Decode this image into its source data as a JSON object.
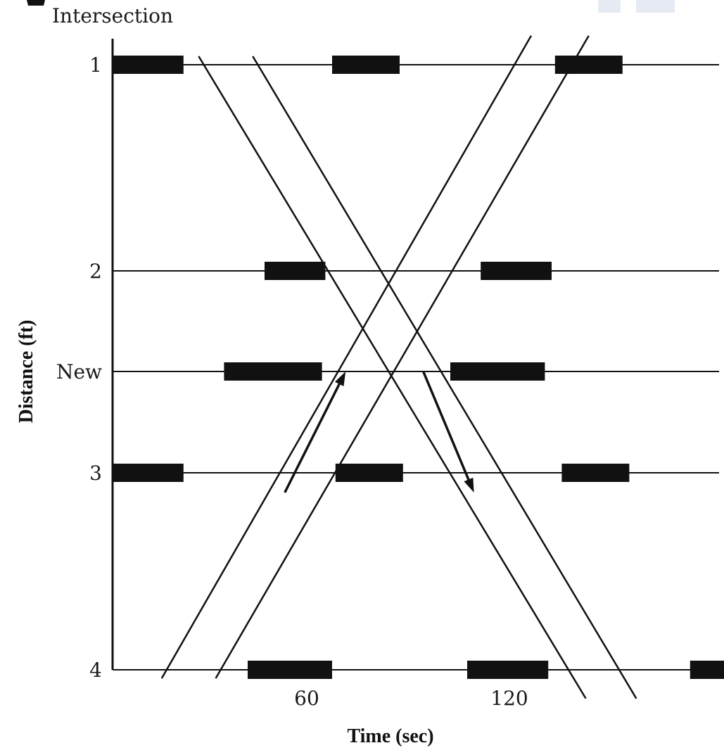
{
  "header_label": "Intersection",
  "intersections": [
    {
      "label": "1",
      "red_phases": [
        [
          0,
          21
        ],
        [
          65,
          85
        ],
        [
          131,
          151
        ]
      ]
    },
    {
      "label": "2",
      "red_phases": [
        [
          45,
          63
        ],
        [
          109,
          130
        ]
      ]
    },
    {
      "label": "New",
      "red_phases": [
        [
          33,
          62
        ],
        [
          100,
          128
        ]
      ]
    },
    {
      "label": "3",
      "red_phases": [
        [
          0,
          21
        ],
        [
          66,
          86
        ],
        [
          133,
          153
        ]
      ]
    },
    {
      "label": "4",
      "red_phases": [
        [
          40,
          65
        ],
        [
          105,
          129
        ],
        [
          171,
          194
        ]
      ]
    }
  ],
  "x_ticks": [
    "60",
    "120"
  ],
  "x_axis_title": "Time (sec)",
  "y_axis_title": "Distance (ft)",
  "trajectories": {
    "northbound_band": [
      [
        [
          16,
          4
        ],
        [
          119,
          1
        ]
      ],
      [
        [
          32,
          4
        ],
        [
          136,
          1
        ]
      ]
    ],
    "southbound_band": [
      [
        [
          27,
          1
        ],
        [
          135,
          4
        ]
      ],
      [
        [
          43,
          1
        ],
        [
          150,
          4
        ]
      ]
    ]
  },
  "direction_arrows": [
    {
      "direction": "northbound",
      "from": [
        51,
        3.1
      ],
      "to": [
        69,
        2.5
      ]
    },
    {
      "direction": "southbound",
      "from": [
        92,
        2.5
      ],
      "to": [
        107,
        3.1
      ]
    }
  ]
}
